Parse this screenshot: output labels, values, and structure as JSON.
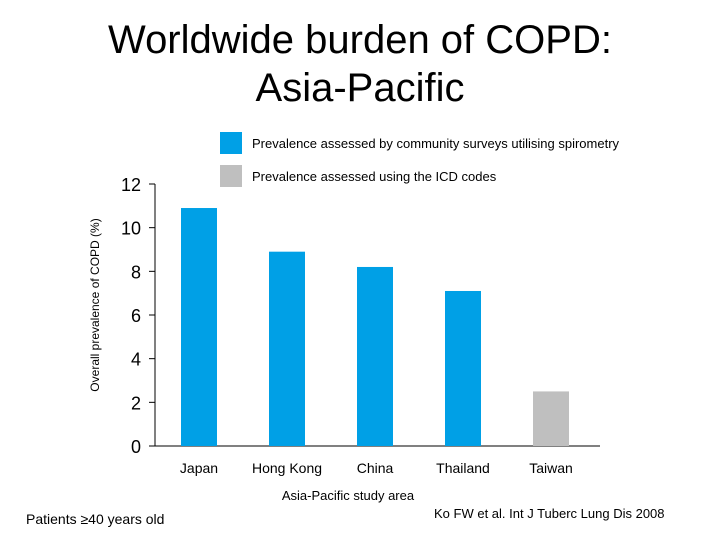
{
  "title": {
    "line1": "Worldwide burden of COPD:",
    "line2": "Asia-Pacific"
  },
  "legend": [
    {
      "label": "Prevalence assessed by community surveys utilising spirometry",
      "color": "#00A0E6"
    },
    {
      "label": "Prevalence assessed using the ICD codes",
      "color": "#BFBFBF"
    }
  ],
  "chart_data": {
    "type": "bar",
    "xlabel": "Asia-Pacific study area",
    "ylabel": "Overall prevalence of COPD (%)",
    "ylim": [
      0,
      12
    ],
    "yticks": [
      0,
      2,
      4,
      6,
      8,
      10,
      12
    ],
    "categories": [
      "Japan",
      "Hong Kong",
      "China",
      "Thailand",
      "Taiwan"
    ],
    "values": [
      10.9,
      8.9,
      8.2,
      7.1,
      2.5
    ],
    "colors": [
      "#00A0E6",
      "#00A0E6",
      "#00A0E6",
      "#00A0E6",
      "#BFBFBF"
    ],
    "grid": false,
    "legend_position": "top"
  },
  "footnotes": {
    "left": "Patients ≥40 years old",
    "right": "Ko FW et al. Int J Tuberc Lung Dis 2008"
  }
}
